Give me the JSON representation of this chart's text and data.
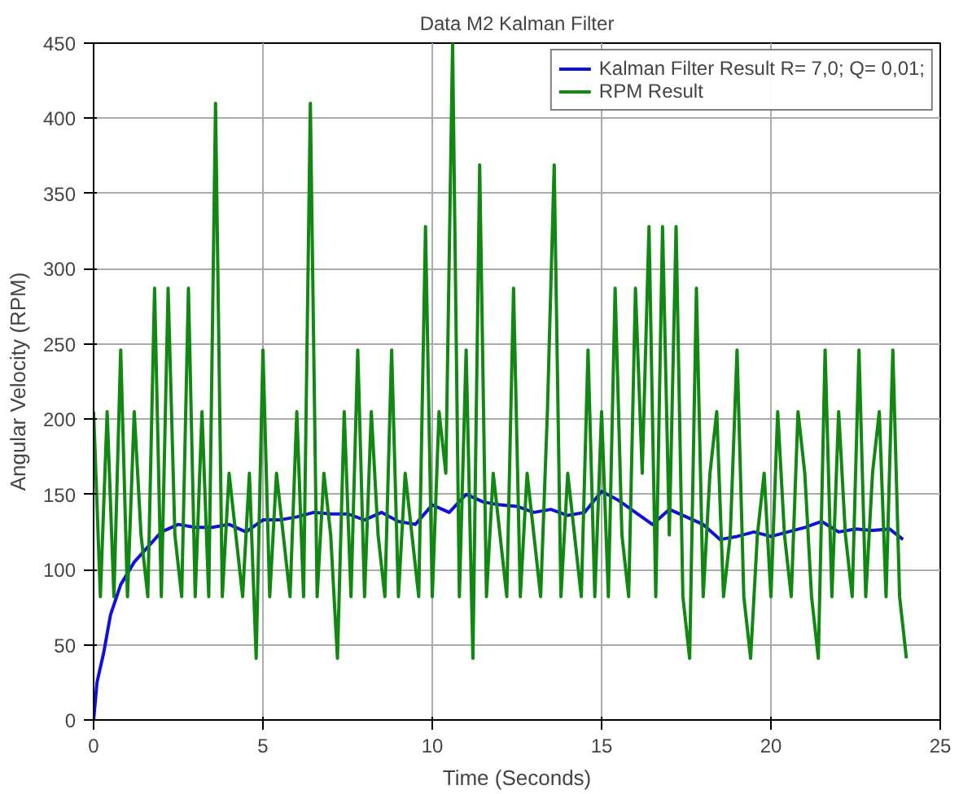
{
  "chart_data": {
    "type": "line",
    "title": "Data M2 Kalman Filter",
    "xlabel": "Time (Seconds)",
    "ylabel": "Angular Velocity (RPM)",
    "xlim": [
      0,
      25
    ],
    "xticks": [
      0,
      5,
      10,
      15,
      20,
      25
    ],
    "ylim": [
      0,
      450
    ],
    "yticks": [
      0,
      50,
      100,
      150,
      200,
      250,
      300,
      350,
      400,
      450
    ],
    "grid": true,
    "legend": "top right",
    "line_style": "solid",
    "marker": "none",
    "series": [
      {
        "name": "Kalman Filter Result R= 7,0; Q= 0,01;",
        "color": "#1010e0",
        "x": [
          0,
          0.1,
          0.3,
          0.5,
          0.8,
          1.2,
          1.6,
          2.0,
          2.5,
          3,
          3.5,
          4,
          4.5,
          5,
          5.5,
          6,
          6.5,
          7,
          7.5,
          8,
          8.5,
          9,
          9.5,
          10,
          10.5,
          11,
          11.5,
          12,
          12.5,
          13,
          13.5,
          14,
          14.5,
          15,
          15.5,
          16,
          16.5,
          17,
          17.5,
          18,
          18.5,
          19,
          19.5,
          20,
          20.5,
          21,
          21.5,
          22,
          22.5,
          23,
          23.5,
          23.9
        ],
        "values": [
          0,
          25,
          45,
          70,
          90,
          105,
          115,
          125,
          130,
          128,
          128,
          130,
          125,
          133,
          133,
          135,
          138,
          137,
          137,
          133,
          138,
          132,
          130,
          143,
          138,
          150,
          145,
          143,
          142,
          138,
          140,
          136,
          138,
          152,
          146,
          138,
          130,
          140,
          135,
          130,
          120,
          122,
          125,
          122,
          125,
          128,
          132,
          125,
          127,
          126,
          127,
          120
        ]
      },
      {
        "name": "RPM Result",
        "color": "#118811",
        "x": [
          0,
          0.2,
          0.4,
          0.6,
          0.8,
          1.0,
          1.2,
          1.4,
          1.6,
          1.8,
          2.0,
          2.2,
          2.4,
          2.6,
          2.8,
          3.0,
          3.2,
          3.4,
          3.6,
          3.8,
          4.0,
          4.2,
          4.4,
          4.6,
          4.8,
          5.0,
          5.2,
          5.4,
          5.6,
          5.8,
          6.0,
          6.2,
          6.4,
          6.6,
          6.8,
          7.0,
          7.2,
          7.4,
          7.6,
          7.8,
          8.0,
          8.2,
          8.4,
          8.6,
          8.8,
          9.0,
          9.2,
          9.4,
          9.6,
          9.8,
          10.0,
          10.2,
          10.4,
          10.6,
          10.8,
          11.0,
          11.2,
          11.4,
          11.6,
          11.8,
          12.0,
          12.2,
          12.4,
          12.6,
          12.8,
          13.0,
          13.2,
          13.4,
          13.6,
          13.8,
          14.0,
          14.2,
          14.4,
          14.6,
          14.8,
          15.0,
          15.2,
          15.4,
          15.6,
          15.8,
          16.0,
          16.2,
          16.4,
          16.6,
          16.8,
          17.0,
          17.2,
          17.4,
          17.6,
          17.8,
          18.0,
          18.2,
          18.4,
          18.6,
          18.8,
          19.0,
          19.2,
          19.4,
          19.6,
          19.8,
          20.0,
          20.2,
          20.4,
          20.6,
          20.8,
          21.0,
          21.2,
          21.4,
          21.6,
          21.8,
          22.0,
          22.2,
          22.4,
          22.6,
          22.8,
          23.0,
          23.2,
          23.4,
          23.6,
          23.8,
          24.0
        ],
        "values": [
          205,
          82,
          205,
          82,
          246,
          82,
          205,
          123,
          82,
          287,
          82,
          287,
          123,
          82,
          287,
          82,
          205,
          82,
          410,
          82,
          164,
          123,
          82,
          164,
          41,
          246,
          82,
          164,
          123,
          82,
          205,
          82,
          410,
          82,
          164,
          123,
          41,
          205,
          82,
          246,
          82,
          205,
          123,
          82,
          246,
          82,
          164,
          123,
          82,
          328,
          82,
          205,
          164,
          450,
          82,
          246,
          41,
          369,
          82,
          164,
          123,
          82,
          287,
          82,
          164,
          123,
          82,
          205,
          369,
          82,
          164,
          123,
          82,
          246,
          82,
          205,
          82,
          287,
          123,
          82,
          287,
          164,
          328,
          82,
          328,
          123,
          328,
          82,
          41,
          287,
          82,
          164,
          205,
          82,
          123,
          246,
          82,
          41,
          123,
          164,
          82,
          205,
          123,
          82,
          205,
          164,
          82,
          41,
          246,
          82,
          205,
          123,
          82,
          246,
          82,
          164,
          205,
          82,
          246,
          82,
          41
        ]
      }
    ]
  }
}
